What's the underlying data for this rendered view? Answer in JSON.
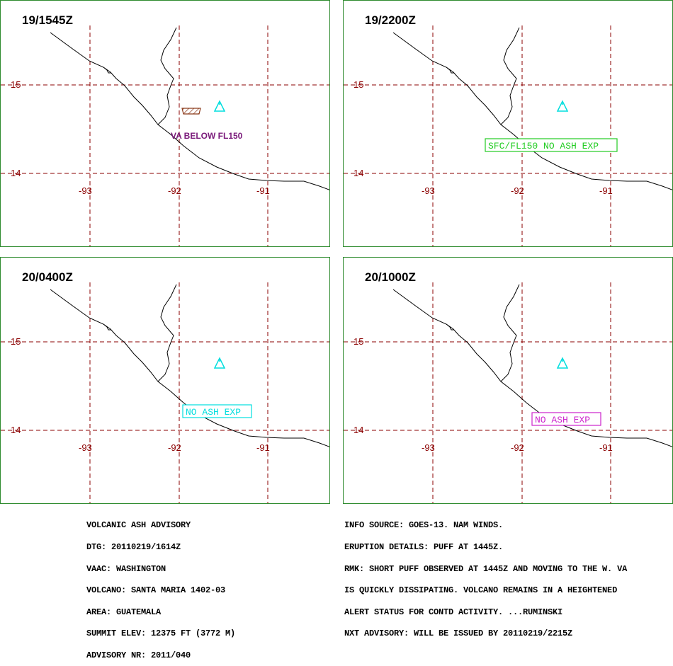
{
  "colors": {
    "panel_border": "#2e8b2e",
    "grid": "#8b0000",
    "coast": "#000000",
    "volcano": "#00dede",
    "ash_polygon": "#8b3a1a",
    "va_text": "#7a1a7a",
    "box_green": "#22cc22",
    "box_cyan": "#00dede",
    "box_magenta": "#cc22cc"
  },
  "icons": {
    "volcano": "volcano-icon"
  },
  "panels": [
    {
      "time": "19/1545Z",
      "label": "VA BELOW FL150",
      "label_style": "plain-purple"
    },
    {
      "time": "19/2200Z",
      "label": "SFC/FL150 NO ASH EXP",
      "label_style": "box-green"
    },
    {
      "time": "20/0400Z",
      "label": "NO ASH EXP",
      "label_style": "box-cyan"
    },
    {
      "time": "20/1000Z",
      "label": "NO ASH EXP",
      "label_style": "box-magenta"
    }
  ],
  "map": {
    "lat_labels": [
      "15",
      "14"
    ],
    "lon_labels": [
      "-93",
      "-92",
      "-91"
    ]
  },
  "advisory_left": [
    "VOLCANIC ASH ADVISORY",
    "DTG: 20110219/1614Z",
    "VAAC: WASHINGTON",
    "VOLCANO: SANTA MARIA 1402-03",
    "AREA: GUATEMALA",
    "SUMMIT ELEV: 12375 FT (3772 M)",
    "ADVISORY NR: 2011/040"
  ],
  "advisory_right": [
    "INFO SOURCE: GOES-13. NAM WINDS.",
    "ERUPTION DETAILS: PUFF AT 1445Z.",
    "RMK: SHORT PUFF OBSERVED AT 1445Z AND MOVING TO THE W. VA",
    "IS QUICKLY DISSIPATING. VOLCANO REMAINS IN A HEIGHTENED",
    "ALERT STATUS FOR CONTD ACTIVITY. ...RUMINSKI",
    "NXT ADVISORY: WILL BE ISSUED BY 20110219/2215Z"
  ]
}
